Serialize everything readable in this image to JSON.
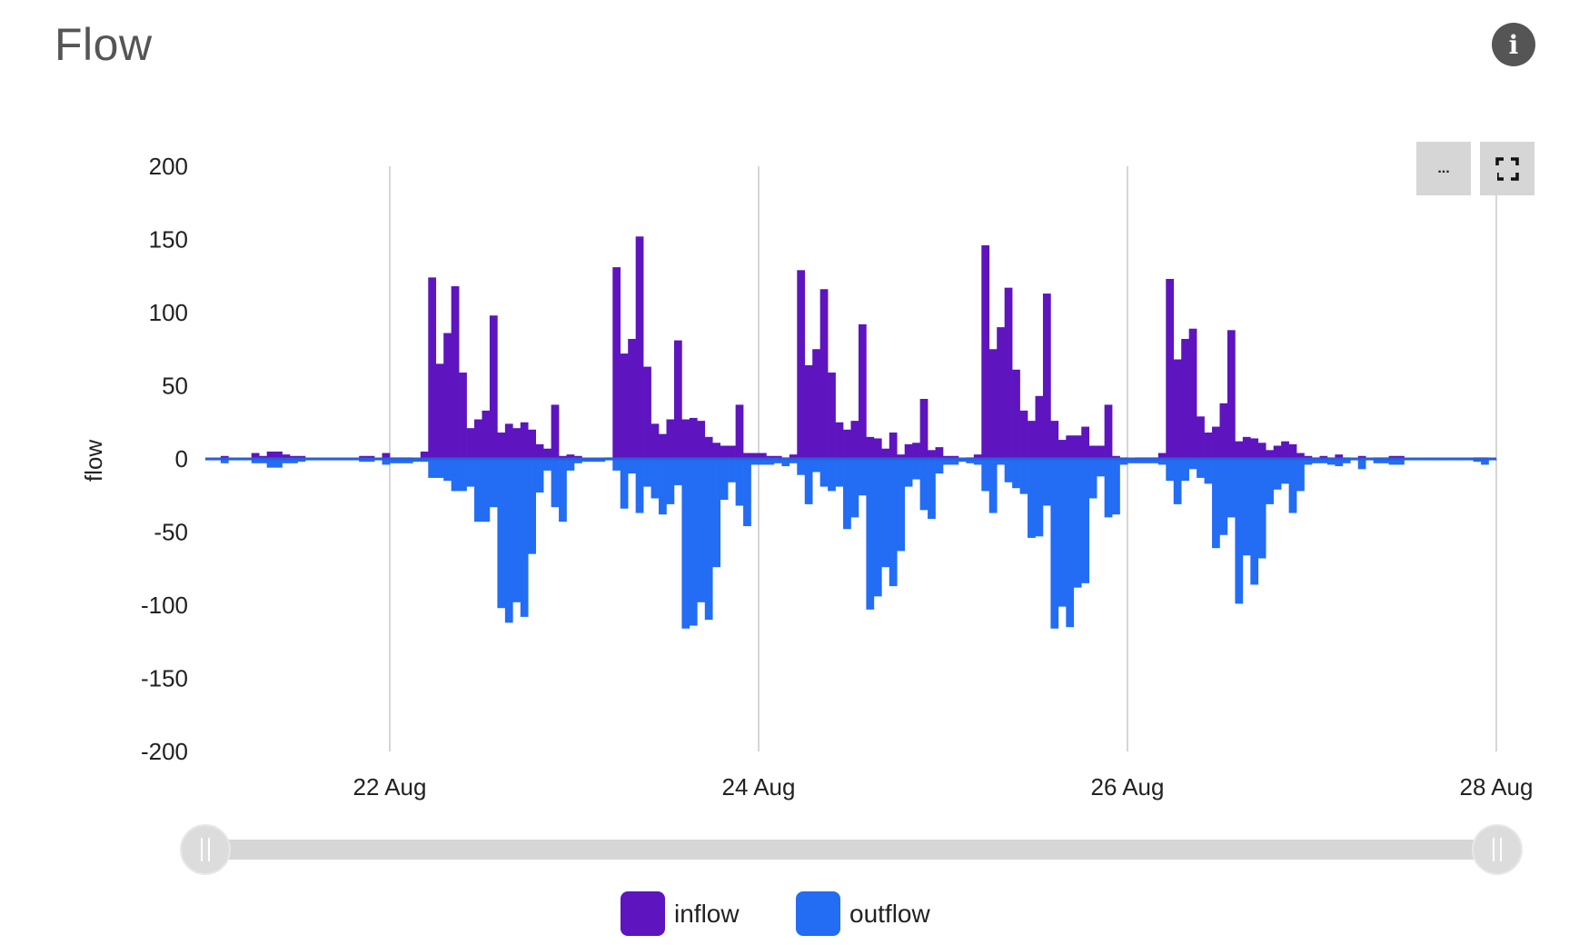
{
  "header": {
    "title": "Flow",
    "info_icon": "info-icon"
  },
  "toolbar": {
    "more_label": "...",
    "more_icon": "ellipsis-icon",
    "fullscreen_icon": "fullscreen-icon"
  },
  "legend": [
    {
      "label": "inflow",
      "color": "#5e14bf"
    },
    {
      "label": "outflow",
      "color": "#236cf4"
    }
  ],
  "chart_data": {
    "type": "bar",
    "title": "Flow",
    "xlabel": "",
    "ylabel": "flow",
    "xlim": [
      "21 Aug",
      "28 Aug"
    ],
    "ylim": [
      -200,
      200
    ],
    "x_ticks": [
      "22 Aug",
      "24 Aug",
      "26 Aug",
      "28 Aug"
    ],
    "y_ticks": [
      200,
      150,
      100,
      50,
      0,
      -50,
      -100,
      -150,
      -200
    ],
    "x_grid": true,
    "y_grid": false,
    "legend_position": "bottom",
    "bin": "hourly",
    "series": [
      {
        "name": "inflow",
        "color": "#5e14bf",
        "values": [
          0,
          0,
          2,
          0,
          0,
          0,
          4,
          2,
          5,
          5,
          3,
          2,
          2,
          0,
          0,
          0,
          0,
          0,
          0,
          0,
          2,
          2,
          0,
          4,
          1,
          1,
          1,
          0,
          5,
          124,
          65,
          86,
          118,
          59,
          21,
          27,
          33,
          98,
          18,
          24,
          21,
          25,
          20,
          10,
          7,
          37,
          2,
          3,
          2,
          0,
          0,
          0,
          1,
          131,
          72,
          82,
          152,
          63,
          24,
          17,
          27,
          81,
          27,
          28,
          26,
          15,
          11,
          9,
          9,
          37,
          4,
          4,
          4,
          2,
          2,
          1,
          3,
          129,
          64,
          75,
          116,
          59,
          25,
          20,
          26,
          92,
          15,
          14,
          7,
          18,
          3,
          10,
          11,
          41,
          6,
          8,
          2,
          2,
          0,
          1,
          3,
          146,
          75,
          90,
          117,
          61,
          33,
          26,
          43,
          113,
          26,
          13,
          16,
          16,
          22,
          9,
          9,
          37,
          2,
          1,
          0,
          1,
          1,
          1,
          4,
          123,
          68,
          82,
          89,
          29,
          18,
          22,
          38,
          88,
          12,
          15,
          14,
          11,
          6,
          9,
          12,
          10,
          4,
          2,
          1,
          2,
          1,
          3,
          1,
          0,
          2,
          0,
          1,
          1,
          2,
          2,
          0,
          0,
          0,
          0,
          0,
          0,
          0,
          0,
          0,
          1,
          1,
          0
        ]
      },
      {
        "name": "outflow",
        "color": "#236cf4",
        "values": [
          -1,
          -1,
          -3,
          -1,
          -1,
          -1,
          -3,
          -3,
          -6,
          -6,
          -3,
          -3,
          -2,
          -1,
          -1,
          -1,
          -1,
          -1,
          -1,
          -1,
          -2,
          -2,
          -1,
          -4,
          -3,
          -3,
          -3,
          -2,
          -2,
          -13,
          -13,
          -15,
          -22,
          -22,
          -19,
          -43,
          -43,
          -33,
          -102,
          -112,
          -98,
          -108,
          -65,
          -23,
          -8,
          -33,
          -43,
          -8,
          -3,
          -2,
          -2,
          -2,
          -1,
          -8,
          -34,
          -10,
          -37,
          -19,
          -27,
          -38,
          -31,
          -18,
          -116,
          -114,
          -98,
          -110,
          -74,
          -28,
          -16,
          -32,
          -46,
          -4,
          -4,
          -4,
          -3,
          -5,
          -3,
          -11,
          -31,
          -9,
          -19,
          -22,
          -19,
          -48,
          -40,
          -25,
          -103,
          -94,
          -74,
          -87,
          -63,
          -19,
          -14,
          -35,
          -41,
          -10,
          -4,
          -4,
          -2,
          -3,
          -4,
          -22,
          -37,
          -4,
          -16,
          -20,
          -24,
          -54,
          -53,
          -32,
          -116,
          -101,
          -115,
          -88,
          -85,
          -27,
          -12,
          -40,
          -38,
          -4,
          -3,
          -3,
          -3,
          -3,
          -4,
          -15,
          -31,
          -15,
          -7,
          -13,
          -17,
          -61,
          -52,
          -40,
          -99,
          -66,
          -86,
          -68,
          -31,
          -21,
          -17,
          -37,
          -22,
          -4,
          -3,
          -3,
          -4,
          -5,
          -3,
          -1,
          -7,
          -1,
          -3,
          -3,
          -4,
          -4,
          -1,
          -1,
          -1,
          -1,
          -1,
          -1,
          -1,
          -1,
          -1,
          -2,
          -4,
          -1
        ]
      }
    ]
  },
  "range_slider": {
    "start_fraction": 0,
    "end_fraction": 1
  }
}
